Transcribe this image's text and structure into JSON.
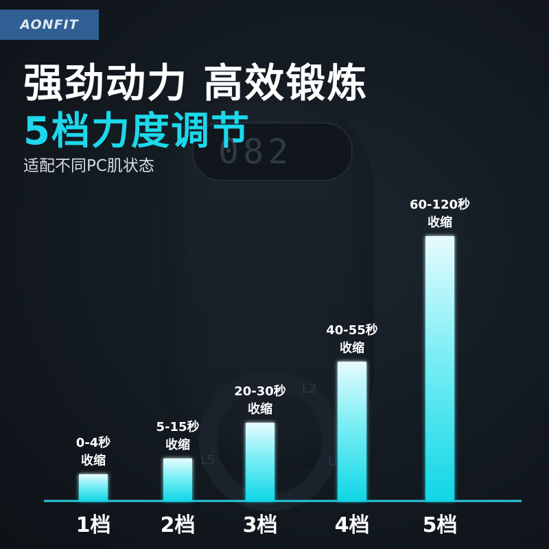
{
  "brand": {
    "logo_text": "AONFIT",
    "box_color": "#2f5f93"
  },
  "header": {
    "headline": "强劲动力 高效锻炼",
    "subheadline": "5档力度调节",
    "tagline": "适配不同PC肌状态"
  },
  "background": {
    "display_digits": "082",
    "ring_labels": [
      "L2",
      "L5",
      "L"
    ]
  },
  "colors": {
    "accent": "#1ed7ea",
    "bar_top": "#e6fbfd",
    "bar_bottom": "#10d6e6",
    "axis": "#2bc8dd",
    "text": "#ffffff"
  },
  "chart_data": {
    "type": "bar",
    "categories": [
      "1档",
      "2档",
      "3档",
      "4档",
      "5档"
    ],
    "values": [
      1,
      2,
      3,
      4,
      5
    ],
    "data_labels": [
      [
        "0-4秒",
        "收缩"
      ],
      [
        "5-15秒",
        "收缩"
      ],
      [
        "20-30秒",
        "收缩"
      ],
      [
        "40-55秒",
        "收缩"
      ],
      [
        "60-120秒",
        "收缩"
      ]
    ],
    "title": "",
    "xlabel": "",
    "ylabel": "",
    "grid": false
  }
}
